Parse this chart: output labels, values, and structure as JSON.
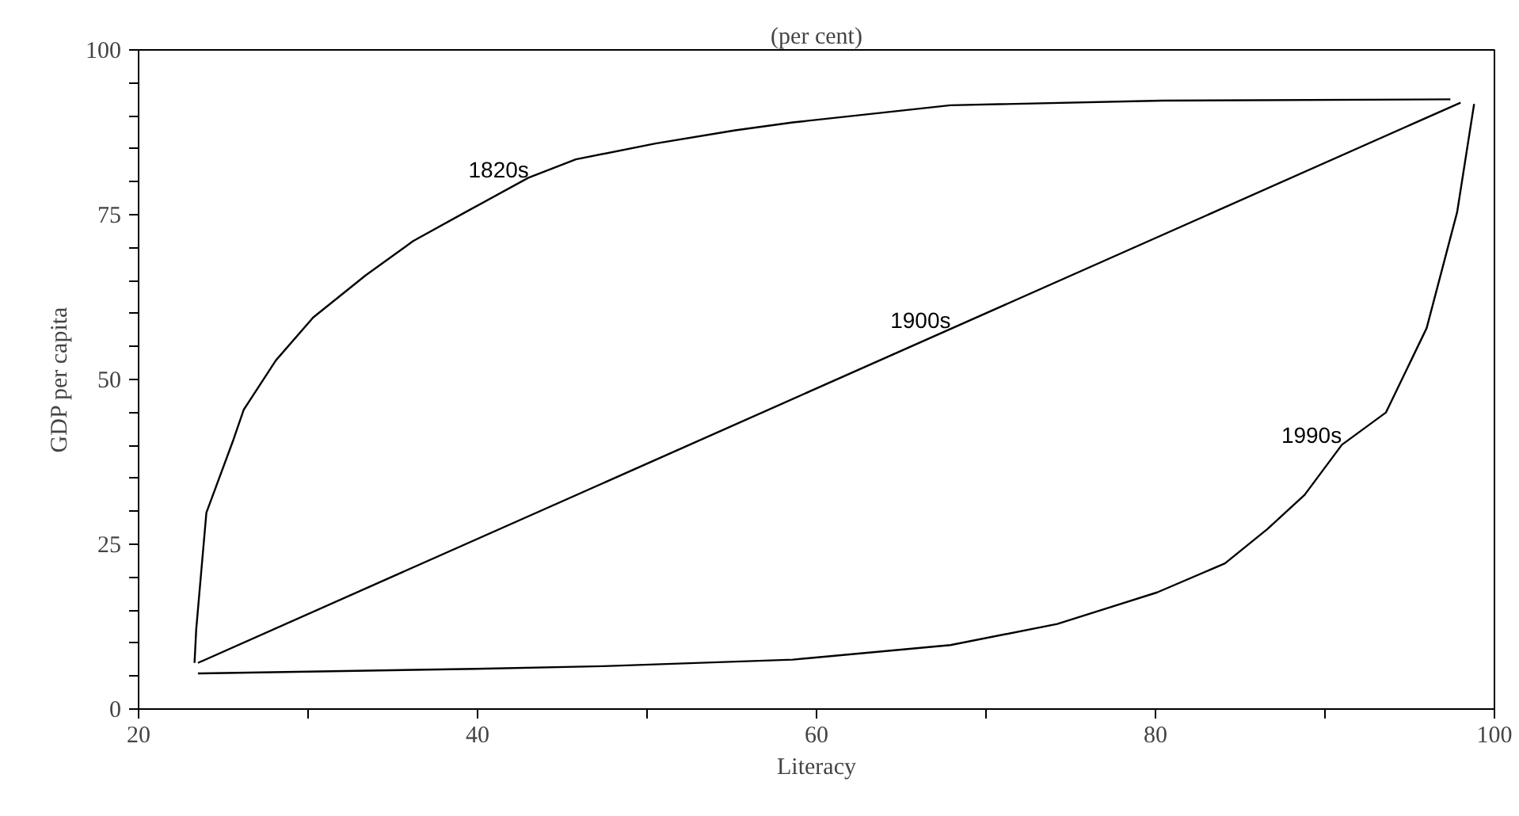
{
  "chart_data": {
    "type": "line",
    "title": "(per cent)",
    "xlabel": "Literacy",
    "ylabel": "GDP per capita",
    "xlim": [
      20,
      100
    ],
    "ylim": [
      0,
      100
    ],
    "xticks": [
      20,
      {
        "value": 30,
        "label": null
      },
      40,
      {
        "value": 50,
        "label": null
      },
      60,
      {
        "value": 70,
        "label": null
      },
      80,
      {
        "value": 90,
        "label": null
      },
      100
    ],
    "yticks": [
      0,
      {
        "value": 5,
        "label": null
      },
      {
        "value": 10,
        "label": null
      },
      {
        "value": 15,
        "label": null
      },
      {
        "value": 20,
        "label": null
      },
      25,
      {
        "value": 30,
        "label": null
      },
      {
        "value": 35,
        "label": null
      },
      {
        "value": 40,
        "label": null
      },
      {
        "value": 45,
        "label": null
      },
      50,
      {
        "value": 55,
        "label": null
      },
      {
        "value": 60,
        "label": null
      },
      {
        "value": 65,
        "label": null
      },
      {
        "value": 70,
        "label": null
      },
      75,
      {
        "value": 80,
        "label": null
      },
      {
        "value": 85,
        "label": null
      },
      {
        "value": 90,
        "label": null
      },
      {
        "value": 95,
        "label": null
      },
      100
    ],
    "grid": false,
    "series": [
      {
        "name": "1820s",
        "color": "#000000",
        "x": [
          23.3,
          23.4,
          24.0,
          25.6,
          26.2,
          28.1,
          30.3,
          33.4,
          36.2,
          39.3,
          43.0,
          45.8,
          50.5,
          55.2,
          58.6,
          67.9,
          80.4,
          97.4
        ],
        "values": [
          7.0,
          12.1,
          29.8,
          40.9,
          45.4,
          52.9,
          59.4,
          65.8,
          71.0,
          75.4,
          80.6,
          83.4,
          85.8,
          87.8,
          89.0,
          91.6,
          92.3,
          92.5
        ]
      },
      {
        "name": "1900s",
        "color": "#000000",
        "x": [
          23.5,
          98.0
        ],
        "values": [
          7.0,
          92.0
        ]
      },
      {
        "name": "1990s",
        "color": "#000000",
        "x": [
          23.5,
          39.9,
          47.4,
          58.6,
          67.9,
          74.2,
          80.1,
          84.1,
          86.6,
          88.8,
          91.0,
          93.6,
          96.0,
          97.8,
          98.8
        ],
        "values": [
          5.4,
          6.1,
          6.5,
          7.5,
          9.7,
          12.9,
          17.7,
          22.1,
          27.3,
          32.5,
          40.1,
          45.0,
          57.8,
          75.4,
          91.8
        ]
      }
    ]
  }
}
